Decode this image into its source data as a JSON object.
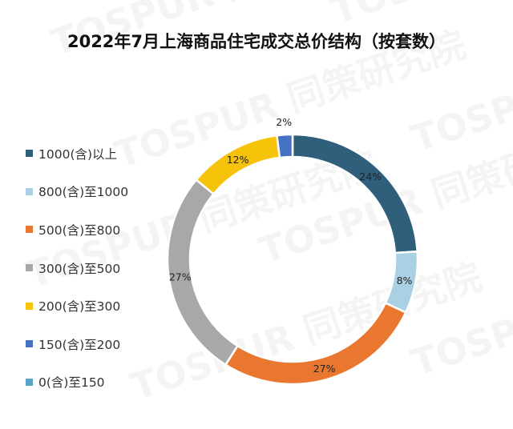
{
  "chart_data": {
    "type": "pie",
    "donut": true,
    "title": "2022年7月上海商品住宅成交总价结构（按套数）",
    "legend_position": "left",
    "categories": [
      "1000(含)以上",
      "800(含)至1000",
      "500(含)至800",
      "300(含)至500",
      "200(含)至300",
      "150(含)至200",
      "0(含)至150"
    ],
    "values": [
      24,
      8,
      27,
      27,
      12,
      2,
      0
    ],
    "labels": [
      "24%",
      "8%",
      "27%",
      "27%",
      "12%",
      "2%",
      ""
    ],
    "colors": [
      "#2f5f7a",
      "#a9d1e3",
      "#e9772f",
      "#a8a8a8",
      "#f7c20a",
      "#4472c4",
      "#5ba3c9"
    ]
  },
  "watermark": {
    "text": "TOSPUR 同策研究院"
  }
}
